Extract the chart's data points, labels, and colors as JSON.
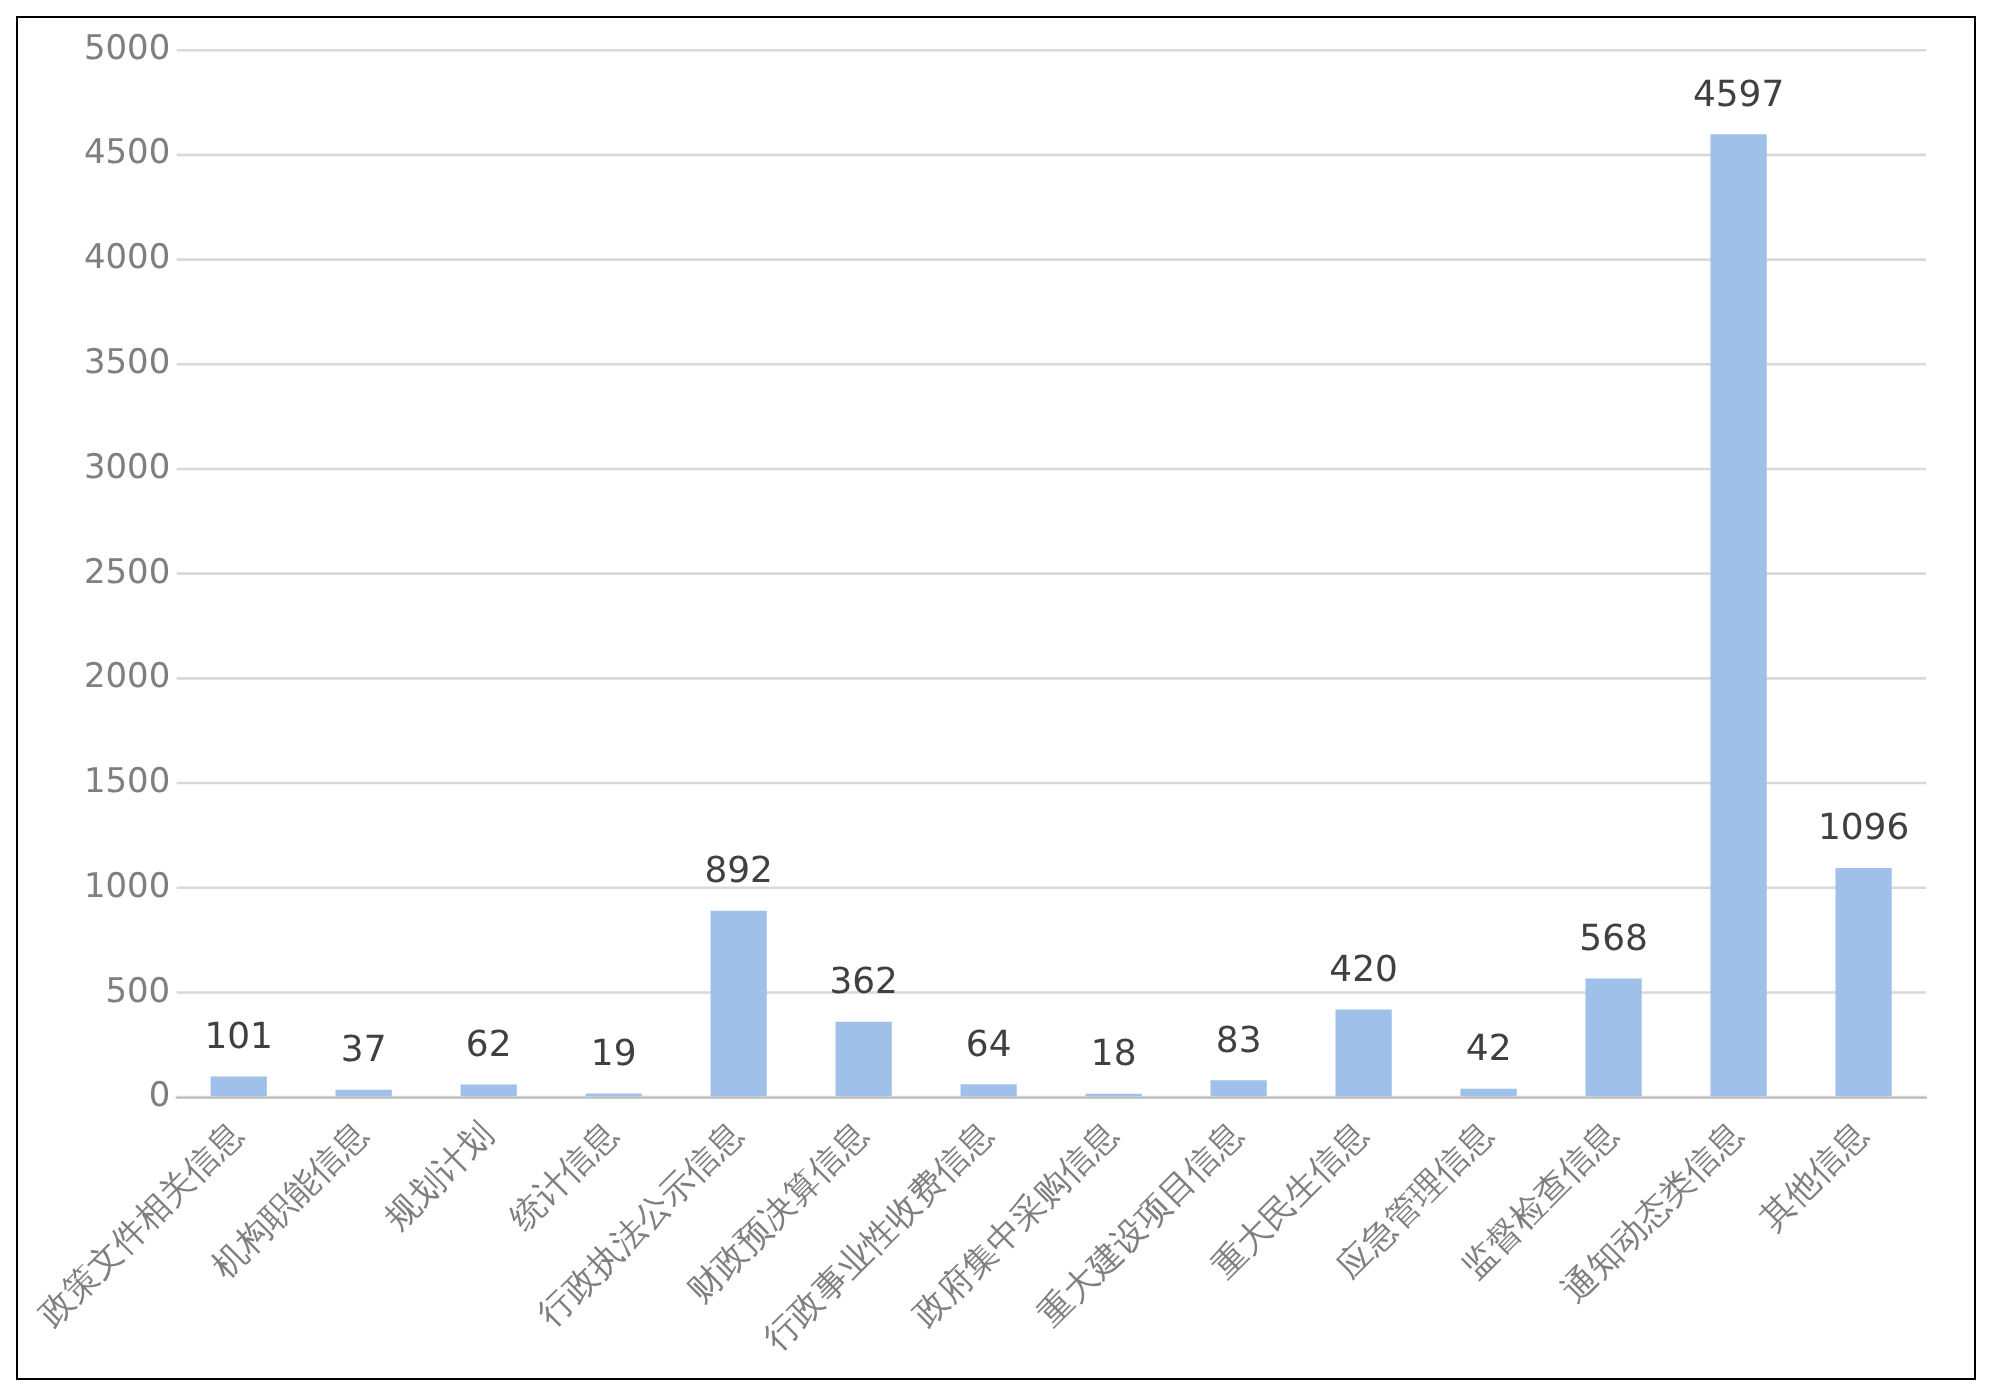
{
  "chart_data": {
    "type": "bar",
    "categories": [
      "政策文件相关信息",
      "机构职能信息",
      "规划计划",
      "统计信息",
      "行政执法公示信息",
      "财政预决算信息",
      "行政事业性收费信息",
      "政府集中采购信息",
      "重大建设项目信息",
      "重大民生信息",
      "应急管理信息",
      "监督检查信息",
      "通知动态类信息",
      "其他信息"
    ],
    "values": [
      101,
      37,
      62,
      19,
      892,
      362,
      64,
      18,
      83,
      420,
      42,
      568,
      4597,
      1096
    ],
    "color": "#9fc0e8",
    "ylim": [
      0,
      5000
    ],
    "yticks": [
      0,
      500,
      1000,
      1500,
      2000,
      2500,
      3000,
      3500,
      4000,
      4500,
      5000
    ],
    "grid": "y",
    "legend": false,
    "data_labels": true
  }
}
